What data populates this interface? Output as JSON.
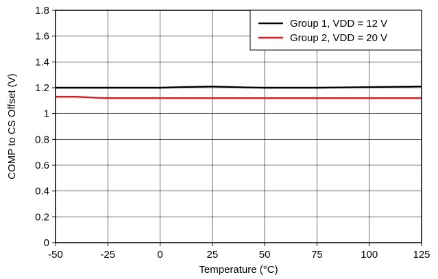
{
  "chart_data": {
    "type": "line",
    "xlabel": "Temperature (°C)",
    "ylabel": "COMP to CS Offset (V)",
    "xlim": [
      -50,
      125
    ],
    "ylim": [
      0,
      1.8
    ],
    "x_ticks": [
      -50,
      -25,
      0,
      25,
      50,
      75,
      100,
      125
    ],
    "y_ticks": [
      0,
      0.2,
      0.4,
      0.6,
      0.8,
      1,
      1.2,
      1.4,
      1.6,
      1.8
    ],
    "x_tick_labels": [
      "-50",
      "-25",
      "0",
      "25",
      "50",
      "75",
      "100",
      "125"
    ],
    "y_tick_labels": [
      "0",
      "0.2",
      "0.4",
      "0.6",
      "0.8",
      "1",
      "1.2",
      "1.4",
      "1.6",
      "1.8"
    ],
    "grid": true,
    "legend_position": "top-right",
    "series": [
      {
        "name": "Group 1, VDD = 12 V",
        "color": "#000000",
        "x": [
          -50,
          -25,
          0,
          10,
          25,
          40,
          50,
          75,
          100,
          125
        ],
        "y": [
          1.2,
          1.2,
          1.2,
          1.205,
          1.21,
          1.203,
          1.2,
          1.2,
          1.205,
          1.21
        ]
      },
      {
        "name": "Group 2, VDD = 20 V",
        "color": "#e8141b",
        "x": [
          -50,
          -40,
          -30,
          -25,
          0,
          25,
          50,
          75,
          100,
          125
        ],
        "y": [
          1.13,
          1.13,
          1.122,
          1.12,
          1.12,
          1.12,
          1.12,
          1.12,
          1.12,
          1.12
        ]
      }
    ]
  }
}
